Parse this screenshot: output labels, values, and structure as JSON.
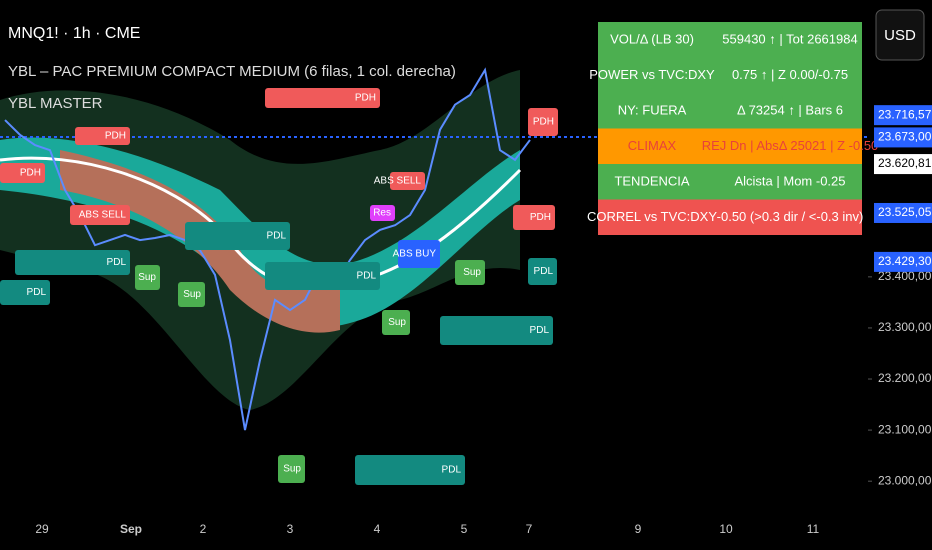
{
  "header": {
    "symbol": "MNQ1! · 1h · CME",
    "indicator1": "YBL – PAC PREMIUM COMPACT MEDIUM (6 filas, 1 col. derecha)",
    "indicator2": "YBL MASTER",
    "currency": "USD"
  },
  "table": {
    "rows": [
      {
        "left": "VOL/Δ (LB 30)",
        "right": "559430 ↑ | Tot 2661984",
        "color": "#4caf50",
        "text_color": "#ffffff"
      },
      {
        "left": "POWER vs TVC:DXY",
        "right": "0.75 ↑ | Z 0.00/-0.75",
        "color": "#4caf50",
        "text_color": "#ffffff"
      },
      {
        "left": "NY: FUERA",
        "right": "Δ 73254 ↑ | Bars 6",
        "color": "#4caf50",
        "text_color": "#ffffff"
      },
      {
        "left": "CLIMAX",
        "right": "REJ Dn | AbsΔ 25021 | Z -0.50",
        "color": "#ff9800",
        "text_color": "#e8423a"
      },
      {
        "left": "TENDENCIA",
        "right": "Alcista | Mom -0.25",
        "color": "#4caf50",
        "text_color": "#ffffff"
      },
      {
        "left": "CORREL vs TVC:DXY",
        "right": "-0.50  (>0.3 dir / <-0.3 inv)",
        "color": "#ef5350",
        "text_color": "#ffffff"
      }
    ]
  },
  "annotations": [
    "PDH",
    "PDH",
    "PDH",
    "PDH",
    "PDH",
    "PDL",
    "PDL",
    "PDL",
    "PDL",
    "PDL",
    "PDL",
    "PDL",
    "Sup",
    "Sup",
    "Sup",
    "Sup",
    "Sup",
    "ABS SELL",
    "ABS SELL",
    "ABS BUY",
    "Res"
  ],
  "chart": {
    "ylim": [
      22924,
      23942
    ],
    "yticks": [
      {
        "value": 23000,
        "label": "23.000,00"
      },
      {
        "value": 23100,
        "label": "23.100,00"
      },
      {
        "value": 23200,
        "label": "23.200,00"
      },
      {
        "value": 23300,
        "label": "23.300,00"
      },
      {
        "value": 23400,
        "label": "23.400,00"
      }
    ],
    "price_labels": [
      {
        "value": 23716.57,
        "label": "23.716,57",
        "color": "#2962ff"
      },
      {
        "value": 23673,
        "label": "23.673,00",
        "color": "#2962ff"
      },
      {
        "value": 23620.81,
        "label": "23.620,81",
        "color": "#ffffff"
      },
      {
        "value": 23525.05,
        "label": "23.525,05",
        "color": "#2962ff"
      },
      {
        "value": 23429.3,
        "label": "23.429,30",
        "color": "#2962ff"
      }
    ],
    "x_labels": [
      "29",
      "Sep",
      "2",
      "3",
      "4",
      "5",
      "7",
      "9",
      "10",
      "11"
    ],
    "values": [
      23707,
      23678,
      23658,
      23648,
      23570,
      23521,
      23462,
      23472,
      23482,
      23472,
      23476,
      23482,
      23472,
      23452,
      23404,
      23276,
      23100,
      23237,
      23355,
      23335,
      23355,
      23413,
      23384,
      23433,
      23472,
      23492,
      23501,
      23521,
      23570,
      23688,
      23737,
      23756,
      23805,
      23648,
      23629,
      23668
    ],
    "color": "#5b8cff"
  }
}
